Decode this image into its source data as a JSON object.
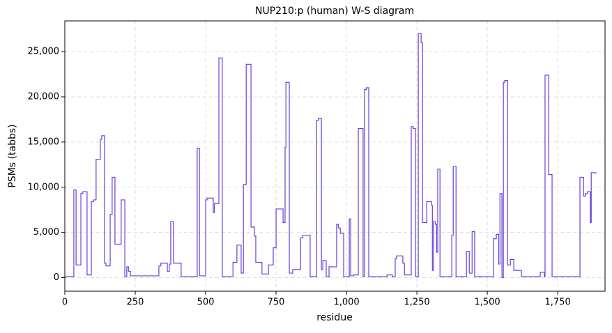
{
  "chart_data": {
    "type": "line",
    "step": "post",
    "title": "NUP210:p (human) W-S diagram",
    "xlabel": "residue",
    "ylabel": "PSMs (tabbs)",
    "grid": true,
    "xlim": [
      0,
      1918
    ],
    "ylim": [
      -1500,
      28400
    ],
    "xticks": [
      0,
      250,
      500,
      750,
      {
        "value": 1000,
        "label": "1,000"
      },
      {
        "value": 1250,
        "label": "1,250"
      },
      {
        "value": 1500,
        "label": "1,500"
      },
      {
        "value": 1750,
        "label": "1,750"
      }
    ],
    "yticks": [
      0,
      {
        "value": 5000,
        "label": "5,000"
      },
      {
        "value": 10000,
        "label": "10,000"
      },
      {
        "value": 15000,
        "label": "15,000"
      },
      {
        "value": 20000,
        "label": "20,000"
      },
      {
        "value": 25000,
        "label": "25,000"
      }
    ],
    "series": [
      {
        "color": "#6a3fd6",
        "x": [
          0,
          32,
          40,
          57,
          64,
          79,
          94,
          102,
          111,
          126,
          131,
          141,
          146,
          161,
          168,
          178,
          200,
          213,
          220,
          226,
          233,
          334,
          341,
          364,
          371,
          376,
          386,
          413,
          470,
          478,
          500,
          505,
          527,
          531,
          547,
          559,
          597,
          611,
          626,
          634,
          644,
          661,
          673,
          678,
          700,
          723,
          740,
          750,
          775,
          782,
          785,
          797,
          809,
          837,
          845,
          871,
          894,
          900,
          911,
          916,
          928,
          938,
          965,
          971,
          978,
          990,
          1010,
          1015,
          1025,
          1042,
          1059,
          1064,
          1070,
          1079,
          1144,
          1163,
          1173,
          1178,
          1200,
          1206,
          1230,
          1237,
          1245,
          1255,
          1265,
          1270,
          1285,
          1302,
          1305,
          1309,
          1316,
          1320,
          1324,
          1332,
          1374,
          1379,
          1389,
          1426,
          1436,
          1446,
          1455,
          1522,
          1532,
          1540,
          1545,
          1552,
          1557,
          1562,
          1572,
          1582,
          1594,
          1621,
          1688,
          1703,
          1705,
          1718,
          1730,
          1829,
          1842,
          1848,
          1855,
          1866,
          1869,
          1888
        ],
        "values": [
          100,
          9700,
          1400,
          9300,
          9500,
          300,
          8400,
          8600,
          13100,
          15300,
          15700,
          1600,
          1300,
          7000,
          11100,
          3700,
          8600,
          100,
          1200,
          700,
          200,
          1300,
          1600,
          700,
          1500,
          6200,
          1600,
          100,
          14300,
          200,
          8600,
          8800,
          7200,
          8200,
          24300,
          100,
          1700,
          3600,
          500,
          10300,
          23600,
          5600,
          4600,
          1700,
          400,
          1400,
          3300,
          7600,
          6100,
          14400,
          21600,
          500,
          900,
          4400,
          4700,
          100,
          17400,
          17600,
          900,
          1900,
          100,
          1200,
          5900,
          5500,
          4900,
          100,
          6500,
          200,
          300,
          16500,
          100,
          20800,
          21000,
          100,
          300,
          100,
          2100,
          2400,
          1600,
          300,
          16700,
          16500,
          100,
          27000,
          26000,
          6100,
          8400,
          8000,
          800,
          6200,
          5900,
          2800,
          12000,
          100,
          4700,
          12300,
          100,
          2900,
          500,
          5100,
          100,
          4300,
          4800,
          1500,
          9300,
          0,
          21600,
          21800,
          1400,
          2000,
          800,
          100,
          600,
          100,
          22400,
          11400,
          100,
          11100,
          9000,
          9300,
          9500,
          6100,
          11600,
          11600
        ]
      }
    ]
  }
}
